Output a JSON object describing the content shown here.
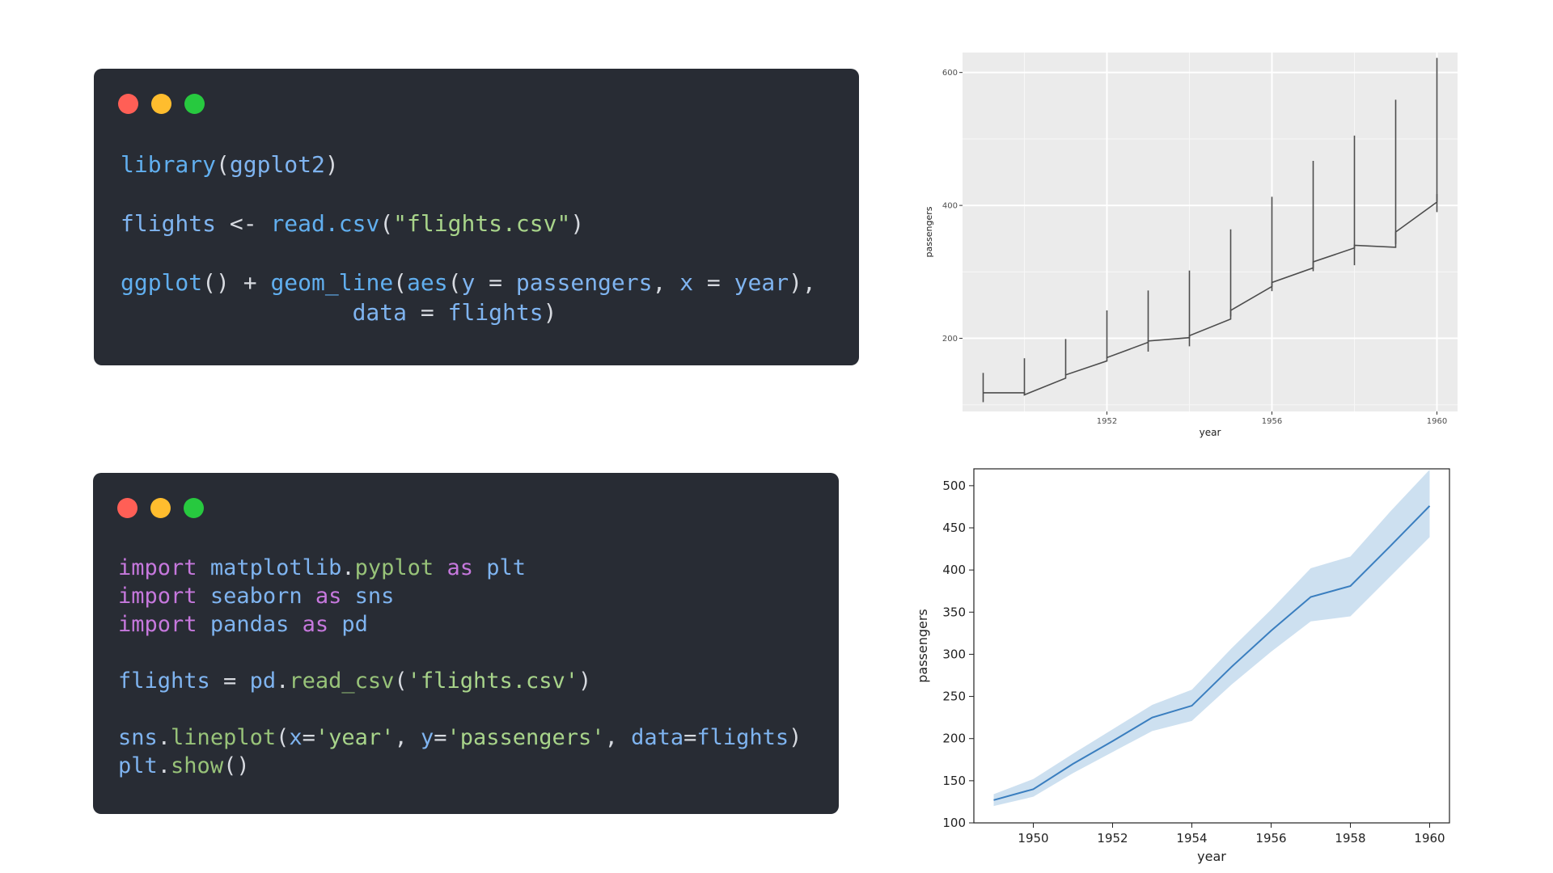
{
  "snippets": [
    {
      "language": "R",
      "lines": [
        [
          {
            "t": "library",
            "c": "fn"
          },
          {
            "t": "(",
            "c": "pn"
          },
          {
            "t": "ggplot2",
            "c": "id"
          },
          {
            "t": ")",
            "c": "pn"
          }
        ],
        [],
        [
          {
            "t": "flights",
            "c": "id"
          },
          {
            "t": " <- ",
            "c": "op"
          },
          {
            "t": "read.csv",
            "c": "fn"
          },
          {
            "t": "(",
            "c": "pn"
          },
          {
            "t": "\"flights.csv\"",
            "c": "str"
          },
          {
            "t": ")",
            "c": "pn"
          }
        ],
        [],
        [
          {
            "t": "ggplot",
            "c": "fn"
          },
          {
            "t": "() + ",
            "c": "pn"
          },
          {
            "t": "geom_line",
            "c": "fn"
          },
          {
            "t": "(",
            "c": "pn"
          },
          {
            "t": "aes",
            "c": "fn"
          },
          {
            "t": "(",
            "c": "pn"
          },
          {
            "t": "y",
            "c": "id"
          },
          {
            "t": " = ",
            "c": "op"
          },
          {
            "t": "passengers",
            "c": "id"
          },
          {
            "t": ", ",
            "c": "pn"
          },
          {
            "t": "x",
            "c": "id"
          },
          {
            "t": " = ",
            "c": "op"
          },
          {
            "t": "year",
            "c": "id"
          },
          {
            "t": "),",
            "c": "pn"
          }
        ],
        [
          {
            "t": "                 ",
            "c": "pn"
          },
          {
            "t": "data",
            "c": "id"
          },
          {
            "t": " = ",
            "c": "op"
          },
          {
            "t": "flights",
            "c": "id"
          },
          {
            "t": ")",
            "c": "pn"
          }
        ]
      ]
    },
    {
      "language": "Python",
      "lines": [
        [
          {
            "t": "import",
            "c": "kw"
          },
          {
            "t": " ",
            "c": "pn"
          },
          {
            "t": "matplotlib",
            "c": "id"
          },
          {
            "t": ".",
            "c": "pn"
          },
          {
            "t": "pyplot",
            "c": "mod"
          },
          {
            "t": " ",
            "c": "pn"
          },
          {
            "t": "as",
            "c": "kw"
          },
          {
            "t": " ",
            "c": "pn"
          },
          {
            "t": "plt",
            "c": "id"
          }
        ],
        [
          {
            "t": "import",
            "c": "kw"
          },
          {
            "t": " ",
            "c": "pn"
          },
          {
            "t": "seaborn",
            "c": "id"
          },
          {
            "t": " ",
            "c": "pn"
          },
          {
            "t": "as",
            "c": "kw"
          },
          {
            "t": " ",
            "c": "pn"
          },
          {
            "t": "sns",
            "c": "id"
          }
        ],
        [
          {
            "t": "import",
            "c": "kw"
          },
          {
            "t": " ",
            "c": "pn"
          },
          {
            "t": "pandas",
            "c": "id"
          },
          {
            "t": " ",
            "c": "pn"
          },
          {
            "t": "as",
            "c": "kw"
          },
          {
            "t": " ",
            "c": "pn"
          },
          {
            "t": "pd",
            "c": "id"
          }
        ],
        [],
        [
          {
            "t": "flights",
            "c": "id"
          },
          {
            "t": " = ",
            "c": "op"
          },
          {
            "t": "pd",
            "c": "id"
          },
          {
            "t": ".",
            "c": "pn"
          },
          {
            "t": "read_csv",
            "c": "mod"
          },
          {
            "t": "(",
            "c": "pn"
          },
          {
            "t": "'flights.csv'",
            "c": "str"
          },
          {
            "t": ")",
            "c": "pn"
          }
        ],
        [],
        [
          {
            "t": "sns",
            "c": "id"
          },
          {
            "t": ".",
            "c": "pn"
          },
          {
            "t": "lineplot",
            "c": "mod"
          },
          {
            "t": "(",
            "c": "pn"
          },
          {
            "t": "x",
            "c": "id"
          },
          {
            "t": "=",
            "c": "op"
          },
          {
            "t": "'year'",
            "c": "str"
          },
          {
            "t": ", ",
            "c": "pn"
          },
          {
            "t": "y",
            "c": "id"
          },
          {
            "t": "=",
            "c": "op"
          },
          {
            "t": "'passengers'",
            "c": "str"
          },
          {
            "t": ", ",
            "c": "pn"
          },
          {
            "t": "data",
            "c": "id"
          },
          {
            "t": "=",
            "c": "op"
          },
          {
            "t": "flights",
            "c": "id"
          },
          {
            "t": ")",
            "c": "pn"
          }
        ],
        [
          {
            "t": "plt",
            "c": "id"
          },
          {
            "t": ".",
            "c": "pn"
          },
          {
            "t": "show",
            "c": "mod"
          },
          {
            "t": "()",
            "c": "pn"
          }
        ]
      ]
    }
  ],
  "colors": {
    "window_bg": "#282c34",
    "dot_close": "#ff5f56",
    "dot_minimize": "#ffbd2e",
    "dot_maximize": "#27c93f",
    "ggplot_panel": "#ebebeb",
    "ggplot_line": "#4d4d4d",
    "seaborn_line": "#3a7ebf",
    "seaborn_band": "#b8d3ea"
  },
  "chart_data": [
    {
      "type": "line",
      "style": "ggplot2",
      "title": "",
      "xlabel": "year",
      "ylabel": "passengers",
      "xlim": [
        1948.5,
        1960.5
      ],
      "ylim": [
        90,
        630
      ],
      "xticks": [
        1952,
        1956,
        1960
      ],
      "yticks": [
        200,
        400,
        600
      ],
      "grid": true,
      "legend": "none",
      "note": "connected monthly values; vertical segment at each year spans that year's range",
      "years": [
        {
          "year": 1949,
          "min": 104,
          "max": 148,
          "first": 118,
          "last": 118
        },
        {
          "year": 1950,
          "min": 114,
          "max": 170,
          "first": 115,
          "last": 140
        },
        {
          "year": 1951,
          "min": 145,
          "max": 199,
          "first": 145,
          "last": 166
        },
        {
          "year": 1952,
          "min": 171,
          "max": 242,
          "first": 171,
          "last": 194
        },
        {
          "year": 1953,
          "min": 180,
          "max": 272,
          "first": 196,
          "last": 201
        },
        {
          "year": 1954,
          "min": 188,
          "max": 302,
          "first": 204,
          "last": 229
        },
        {
          "year": 1955,
          "min": 233,
          "max": 364,
          "first": 242,
          "last": 278
        },
        {
          "year": 1956,
          "min": 271,
          "max": 413,
          "first": 284,
          "last": 306
        },
        {
          "year": 1957,
          "min": 301,
          "max": 467,
          "first": 315,
          "last": 336
        },
        {
          "year": 1958,
          "min": 310,
          "max": 505,
          "first": 340,
          "last": 337
        },
        {
          "year": 1959,
          "min": 342,
          "max": 559,
          "first": 360,
          "last": 405
        },
        {
          "year": 1960,
          "min": 390,
          "max": 622,
          "first": 417,
          "last": 417
        }
      ]
    },
    {
      "type": "line",
      "style": "seaborn",
      "title": "",
      "xlabel": "year",
      "ylabel": "passengers",
      "xlim": [
        1948.5,
        1960.5
      ],
      "ylim": [
        100,
        520
      ],
      "xticks": [
        1950,
        1952,
        1954,
        1956,
        1958,
        1960
      ],
      "yticks": [
        100,
        150,
        200,
        250,
        300,
        350,
        400,
        450,
        500
      ],
      "grid": false,
      "legend": "none",
      "x": [
        1949,
        1950,
        1951,
        1952,
        1953,
        1954,
        1955,
        1956,
        1957,
        1958,
        1959,
        1960
      ],
      "series": [
        {
          "values": [
            127,
            140,
            170,
            197,
            225,
            239,
            285,
            328,
            368,
            381,
            428,
            476
          ],
          "ci_low": [
            120,
            131,
            159,
            184,
            209,
            221,
            264,
            303,
            339,
            345,
            392,
            439
          ],
          "ci_high": [
            134,
            152,
            182,
            211,
            240,
            258,
            307,
            353,
            402,
            416,
            469,
            519
          ]
        }
      ]
    }
  ]
}
